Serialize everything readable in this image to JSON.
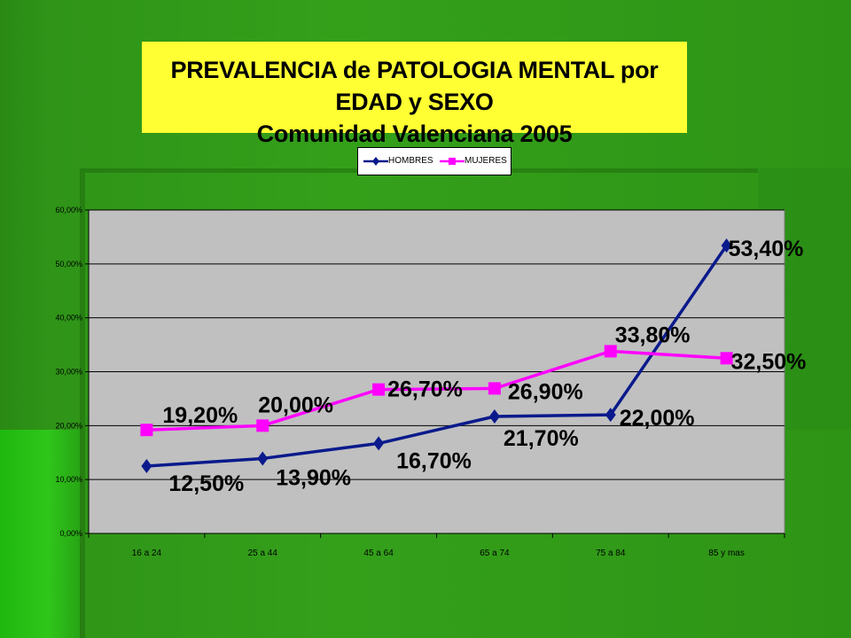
{
  "title": {
    "line1": "PREVALENCIA de PATOLOGIA MENTAL  por EDAD y SEXO",
    "line2": "Comunidad Valenciana 2005"
  },
  "legend": {
    "hombres": "HOMBRES",
    "mujeres": "MUJERES"
  },
  "colors": {
    "hombres": "#0a1a8c",
    "mujeres": "#ff00ff",
    "plot_bg": "#c0c0c0",
    "title_bg": "#ffff33"
  },
  "chart_data": {
    "type": "line",
    "categories": [
      "16 a 24",
      "25 a 44",
      "45 a 64",
      "65 a 74",
      "75 a 84",
      "85 y mas"
    ],
    "ylim": [
      0,
      60
    ],
    "yticks": [
      "0,00%",
      "10,00%",
      "20,00%",
      "30,00%",
      "40,00%",
      "50,00%",
      "60,00%"
    ],
    "grid": true,
    "legend_position": "top",
    "series": [
      {
        "name": "HOMBRES",
        "values": [
          12.5,
          13.9,
          16.7,
          21.7,
          22.0,
          53.4
        ],
        "labels": [
          "12,50%",
          "13,90%",
          "16,70%",
          "21,70%",
          "22,00%",
          "53,40%"
        ]
      },
      {
        "name": "MUJERES",
        "values": [
          19.2,
          20.0,
          26.7,
          26.9,
          33.8,
          32.5
        ],
        "labels": [
          "19,20%",
          "20,00%",
          "26,70%",
          "26,90%",
          "33,80%",
          "32,50%"
        ]
      }
    ]
  }
}
